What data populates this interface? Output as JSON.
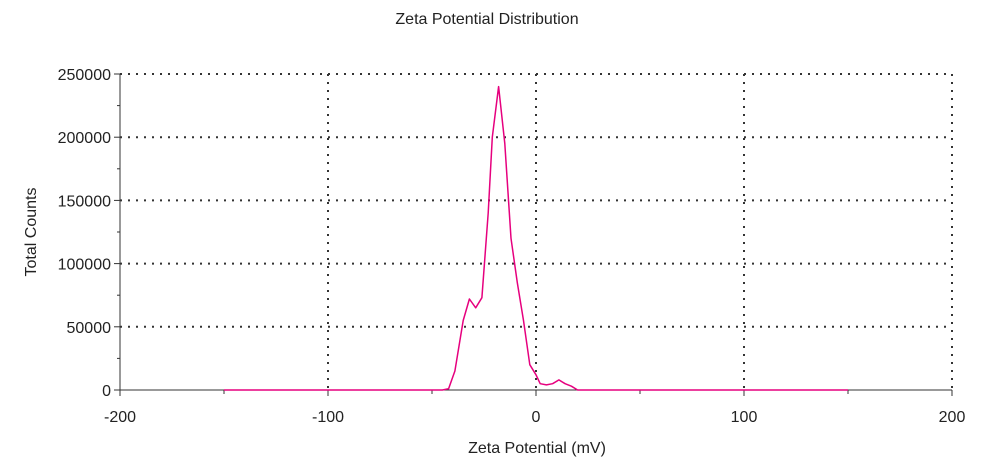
{
  "chart_data": {
    "type": "line",
    "title": "Zeta Potential Distribution",
    "xlabel": "Zeta Potential (mV)",
    "ylabel": "Total Counts",
    "xlim": [
      -200,
      200
    ],
    "ylim": [
      0,
      250000
    ],
    "x_ticks": [
      -200,
      -100,
      0,
      100,
      200
    ],
    "x_tick_labels": [
      "-200",
      "-100",
      "0",
      "100",
      "200"
    ],
    "y_ticks": [
      0,
      50000,
      100000,
      150000,
      200000,
      250000
    ],
    "y_tick_labels": [
      "0",
      "50000",
      "100000",
      "150000",
      "200000",
      "250000"
    ],
    "grid": "dotted",
    "legend": "none",
    "line_color": "#e6007e",
    "series": [
      {
        "x": [
          -150,
          -45,
          -42,
          -39,
          -35,
          -32,
          -29,
          -26,
          -23,
          -21,
          -18,
          -15,
          -12,
          -9,
          -6,
          -3,
          0,
          2,
          5,
          8,
          11,
          14,
          17,
          20,
          150
        ],
        "y": [
          0,
          0,
          1000,
          15000,
          55000,
          72000,
          65000,
          73000,
          140000,
          200000,
          240000,
          195000,
          120000,
          85000,
          55000,
          20000,
          12000,
          5000,
          4000,
          5000,
          8000,
          5000,
          3000,
          0,
          0
        ]
      }
    ]
  }
}
